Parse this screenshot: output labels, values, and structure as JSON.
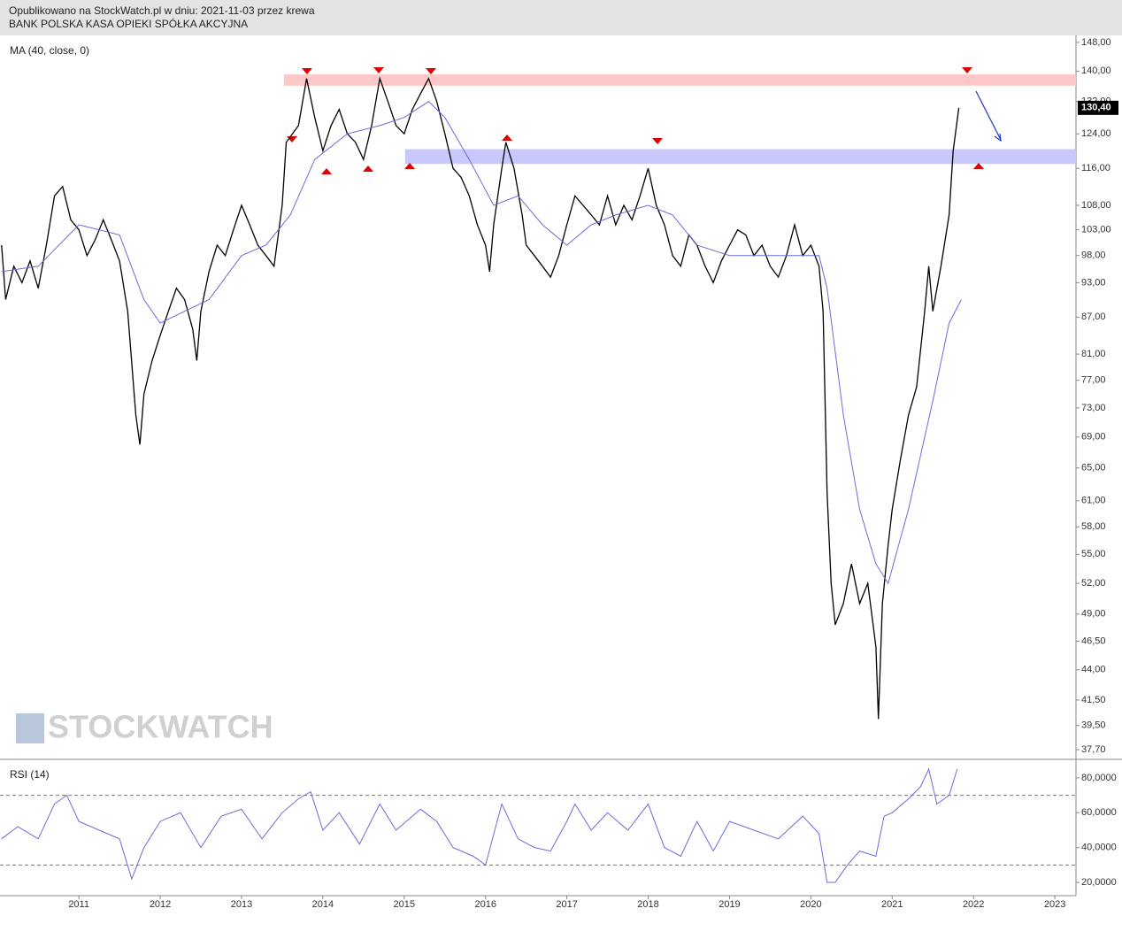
{
  "header": {
    "line1": "Opublikowano na StockWatch.pl w dniu: 2021-11-03 przez krewa",
    "line2": "BANK POLSKA KASA OPIEKI SPÓŁKA AKCYJNA"
  },
  "watermark": "STOCKWATCH",
  "chart_data": [
    {
      "type": "line",
      "log_scale": true,
      "xlim": [
        2010.03,
        2023.26
      ],
      "xticks": [
        2011,
        2012,
        2013,
        2014,
        2015,
        2016,
        2017,
        2018,
        2019,
        2020,
        2021,
        2022,
        2023
      ],
      "ylim": [
        37,
        150
      ],
      "yticks": [
        {
          "value": 148,
          "label": "148,00"
        },
        {
          "value": 140,
          "label": "140,00"
        },
        {
          "value": 132,
          "label": "132,00"
        },
        {
          "value": 124,
          "label": "124,00"
        },
        {
          "value": 116,
          "label": "116,00"
        },
        {
          "value": 108,
          "label": "108,00"
        },
        {
          "value": 103,
          "label": "103,00"
        },
        {
          "value": 98,
          "label": "98,00"
        },
        {
          "value": 93,
          "label": "93,00"
        },
        {
          "value": 87,
          "label": "87,00"
        },
        {
          "value": 81,
          "label": "81,00"
        },
        {
          "value": 77,
          "label": "77,00"
        },
        {
          "value": 73,
          "label": "73,00"
        },
        {
          "value": 69,
          "label": "69,00"
        },
        {
          "value": 65,
          "label": "65,00"
        },
        {
          "value": 61,
          "label": "61,00"
        },
        {
          "value": 58,
          "label": "58,00"
        },
        {
          "value": 55,
          "label": "55,00"
        },
        {
          "value": 52,
          "label": "52,00"
        },
        {
          "value": 49,
          "label": "49,00"
        },
        {
          "value": 46.5,
          "label": "46,50"
        },
        {
          "value": 44,
          "label": "44,00"
        },
        {
          "value": 41.5,
          "label": "41,50"
        },
        {
          "value": 39.5,
          "label": "39,50"
        },
        {
          "value": 37.7,
          "label": "37,70"
        }
      ],
      "last_price": {
        "value": 130.4,
        "label": "130,40"
      },
      "bands": [
        {
          "range": [
            136.1,
            139.1
          ],
          "xstart": 2013.52,
          "color": "#ffc8c8"
        },
        {
          "range": [
            117.0,
            120.4
          ],
          "xstart": 2015.01,
          "color": "#c8c8fa"
        }
      ],
      "series": [
        {
          "color": "#000000",
          "x": [
            2010.05,
            2010.1,
            2010.2,
            2010.3,
            2010.4,
            2010.5,
            2010.6,
            2010.7,
            2010.8,
            2010.9,
            2011.0,
            2011.1,
            2011.2,
            2011.3,
            2011.4,
            2011.5,
            2011.6,
            2011.7,
            2011.75,
            2011.8,
            2011.9,
            2012.0,
            2012.1,
            2012.2,
            2012.3,
            2012.4,
            2012.45,
            2012.5,
            2012.6,
            2012.7,
            2012.8,
            2012.9,
            2013.0,
            2013.1,
            2013.2,
            2013.3,
            2013.4,
            2013.5,
            2013.55,
            2013.7,
            2013.8,
            2013.9,
            2014.0,
            2014.1,
            2014.2,
            2014.3,
            2014.4,
            2014.5,
            2014.6,
            2014.7,
            2014.8,
            2014.9,
            2015.0,
            2015.1,
            2015.2,
            2015.3,
            2015.4,
            2015.5,
            2015.6,
            2015.7,
            2015.8,
            2015.9,
            2016.0,
            2016.05,
            2016.1,
            2016.2,
            2016.25,
            2016.35,
            2016.45,
            2016.5,
            2016.6,
            2016.7,
            2016.8,
            2016.9,
            2017.0,
            2017.1,
            2017.2,
            2017.3,
            2017.4,
            2017.5,
            2017.6,
            2017.7,
            2017.8,
            2017.9,
            2018.0,
            2018.1,
            2018.2,
            2018.3,
            2018.4,
            2018.5,
            2018.6,
            2018.7,
            2018.8,
            2018.9,
            2019.0,
            2019.1,
            2019.2,
            2019.3,
            2019.4,
            2019.5,
            2019.6,
            2019.7,
            2019.8,
            2019.9,
            2020.0,
            2020.1,
            2020.15,
            2020.2,
            2020.25,
            2020.3,
            2020.4,
            2020.5,
            2020.6,
            2020.7,
            2020.8,
            2020.83,
            2020.88,
            2020.95,
            2021.0,
            2021.1,
            2021.2,
            2021.3,
            2021.4,
            2021.45,
            2021.5,
            2021.6,
            2021.7,
            2021.75,
            2021.82
          ],
          "values": [
            100,
            90,
            96,
            93,
            97,
            92,
            100,
            110,
            112,
            105,
            103,
            98,
            101,
            105,
            101,
            97,
            88,
            72,
            68,
            75,
            80,
            84,
            88,
            92,
            90,
            85,
            80,
            88,
            95,
            100,
            98,
            103,
            108,
            104,
            100,
            98,
            96,
            108,
            122,
            126,
            138,
            128,
            120,
            126,
            130,
            124,
            122,
            118,
            126,
            138,
            132,
            126,
            124,
            130,
            134,
            138,
            132,
            124,
            116,
            114,
            110,
            104,
            100,
            95,
            104,
            116,
            122,
            116,
            106,
            100,
            98,
            96,
            94,
            98,
            104,
            110,
            108,
            106,
            104,
            110,
            104,
            108,
            105,
            110,
            116,
            108,
            104,
            98,
            96,
            102,
            100,
            96,
            93,
            97,
            100,
            103,
            102,
            98,
            100,
            96,
            94,
            98,
            104,
            98,
            100,
            96,
            88,
            62,
            52,
            48,
            50,
            54,
            50,
            52,
            46,
            40,
            50,
            56,
            60,
            66,
            72,
            76,
            88,
            96,
            88,
            96,
            106,
            120,
            130.4
          ]
        },
        {
          "name": "MA (40, close, 0)",
          "color": "#6b6bdc",
          "x": [
            2010.05,
            2010.5,
            2011.0,
            2011.5,
            2011.8,
            2012.0,
            2012.3,
            2012.6,
            2013.0,
            2013.3,
            2013.6,
            2013.9,
            2014.3,
            2014.7,
            2015.0,
            2015.3,
            2015.5,
            2015.8,
            2016.1,
            2016.4,
            2016.7,
            2017.0,
            2017.3,
            2017.6,
            2018.0,
            2018.3,
            2018.6,
            2019.0,
            2019.4,
            2019.8,
            2020.1,
            2020.2,
            2020.4,
            2020.6,
            2020.8,
            2020.95,
            2021.2,
            2021.5,
            2021.7,
            2021.85
          ],
          "values": [
            95,
            96,
            104,
            102,
            90,
            86,
            88,
            90,
            98,
            100,
            106,
            118,
            124,
            126,
            128,
            132,
            128,
            118,
            108,
            110,
            104,
            100,
            104,
            106,
            108,
            106,
            100,
            98,
            98,
            98,
            98,
            92,
            72,
            60,
            54,
            52,
            60,
            74,
            86,
            90
          ]
        }
      ]
    },
    {
      "type": "line",
      "xlim": [
        2010.03,
        2023.26
      ],
      "ylim": [
        12.4,
        90.6
      ],
      "yticks": [
        {
          "value": 80,
          "label": "80,0000"
        },
        {
          "value": 60,
          "label": "60,0000"
        },
        {
          "value": 40,
          "label": "40,0000"
        },
        {
          "value": 20,
          "label": "20,0000"
        }
      ],
      "reference_lines": [
        70,
        30
      ],
      "series": [
        {
          "name": "RSI (14)",
          "color": "#6b6bdc",
          "x": [
            2010.05,
            2010.25,
            2010.5,
            2010.7,
            2010.85,
            2011.0,
            2011.25,
            2011.5,
            2011.65,
            2011.8,
            2012.0,
            2012.25,
            2012.5,
            2012.75,
            2013.0,
            2013.25,
            2013.5,
            2013.7,
            2013.85,
            2014.0,
            2014.2,
            2014.45,
            2014.7,
            2014.9,
            2015.2,
            2015.4,
            2015.6,
            2015.85,
            2016.0,
            2016.2,
            2016.4,
            2016.6,
            2016.8,
            2017.0,
            2017.1,
            2017.3,
            2017.5,
            2017.75,
            2018.0,
            2018.2,
            2018.4,
            2018.6,
            2018.8,
            2019.0,
            2019.3,
            2019.6,
            2019.9,
            2020.1,
            2020.2,
            2020.3,
            2020.45,
            2020.6,
            2020.8,
            2020.9,
            2021.0,
            2021.2,
            2021.35,
            2021.45,
            2021.55,
            2021.7,
            2021.8
          ],
          "values": [
            45,
            52,
            45,
            65,
            70,
            55,
            50,
            45,
            22,
            40,
            55,
            60,
            40,
            58,
            62,
            45,
            60,
            68,
            72,
            50,
            60,
            42,
            65,
            50,
            62,
            55,
            40,
            35,
            30,
            65,
            45,
            40,
            38,
            55,
            65,
            50,
            60,
            50,
            65,
            40,
            35,
            55,
            38,
            55,
            50,
            45,
            58,
            48,
            20,
            20,
            30,
            38,
            35,
            58,
            60,
            68,
            75,
            85,
            65,
            70,
            85
          ]
        }
      ]
    }
  ]
}
